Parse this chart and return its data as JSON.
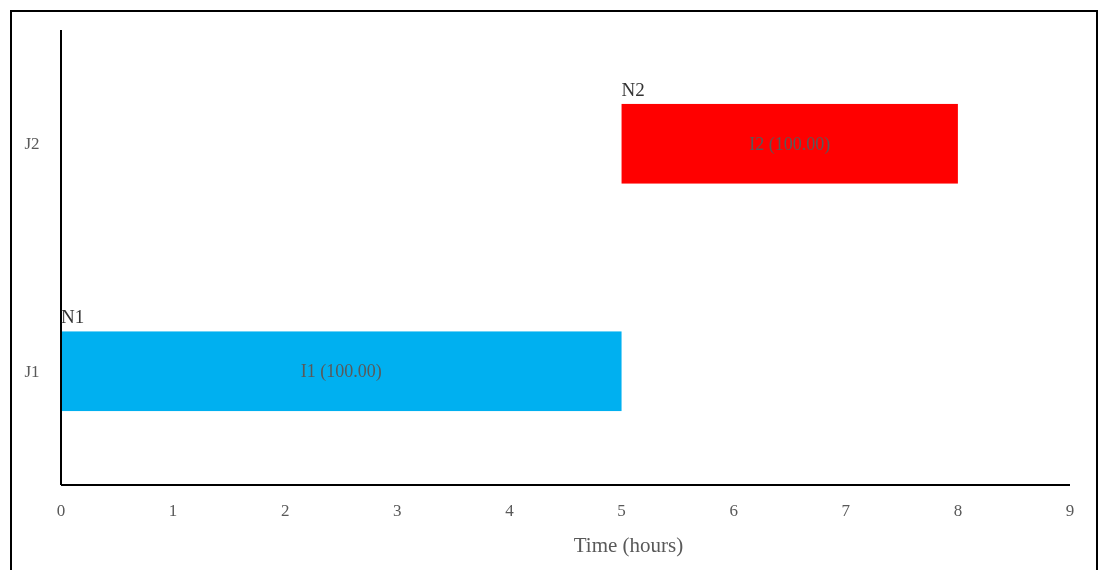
{
  "chart_data": {
    "type": "bar",
    "orientation": "horizontal",
    "xlabel": "Time (hours)",
    "categories": [
      "J2",
      "J1"
    ],
    "values": [
      3,
      5
    ],
    "base": [
      5,
      0
    ],
    "colors": [
      "#ff0000",
      "#00b0f0"
    ],
    "value_labels": [
      "I2 (100.00)",
      "I1 (100.00)"
    ],
    "annotations": [
      {
        "text": "N2",
        "x": 5,
        "y": "J2"
      },
      {
        "text": "N1",
        "x": 0,
        "y": "J1"
      }
    ],
    "xlim": [
      0,
      9
    ],
    "xticks": [
      0,
      1,
      2,
      3,
      4,
      5,
      6,
      7,
      8,
      9
    ]
  }
}
